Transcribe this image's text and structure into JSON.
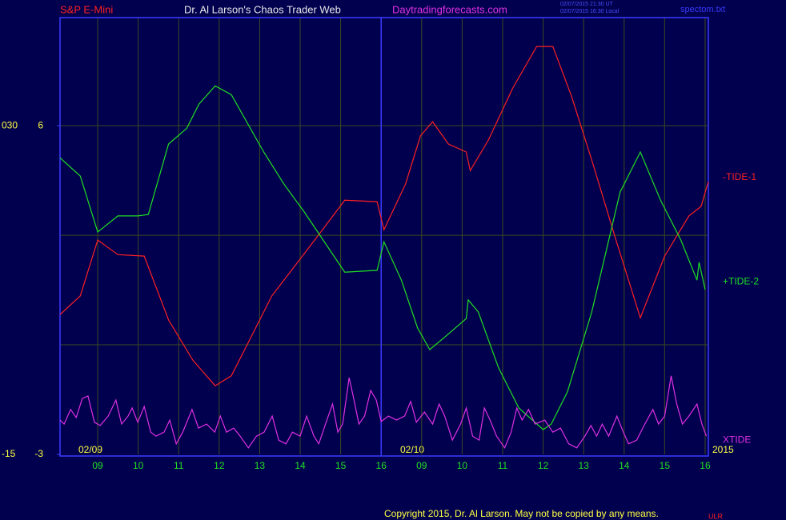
{
  "chart_data": {
    "type": "line",
    "header": {
      "instrument": "S&P E-Mini",
      "site": "Dr. Al Larson's Chaos Trader Web",
      "url": "Daytradingforecasts.com",
      "stamp_ut": "02/07/2015 21:30 UT",
      "stamp_local": "02/07/2015 16:30 Local",
      "file": "spectom.txt"
    },
    "footer": {
      "copyright": "Copyright 2015, Dr. Al Larson. May not be copied by any means.",
      "tag": "ULR"
    },
    "dates": [
      "02/09",
      "02/10"
    ],
    "year": "2015",
    "day_break": 8,
    "xlim": [
      0.07,
      16.08
    ],
    "xticks": [
      {
        "value": 1,
        "label": "09"
      },
      {
        "value": 2,
        "label": "10"
      },
      {
        "value": 3,
        "label": "11"
      },
      {
        "value": 4,
        "label": "12"
      },
      {
        "value": 5,
        "label": "13"
      },
      {
        "value": 6,
        "label": "14"
      },
      {
        "value": 7,
        "label": "15"
      },
      {
        "value": 8,
        "label": "16"
      },
      {
        "value": 9,
        "label": "09"
      },
      {
        "value": 10,
        "label": "10"
      },
      {
        "value": 11,
        "label": "11"
      },
      {
        "value": 12,
        "label": "12"
      },
      {
        "value": 13,
        "label": "13"
      },
      {
        "value": 14,
        "label": "14"
      },
      {
        "value": 15,
        "label": "15"
      },
      {
        "value": 16,
        "label": "16"
      }
    ],
    "ylim": [
      -3,
      8.96
    ],
    "yticks": [
      -3,
      6
    ],
    "y2lim": [
      -15,
      44.8
    ],
    "y2ticks": [
      -15,
      {
        "value": 30,
        "label": "030"
      }
    ],
    "hgrid": [
      0,
      3,
      6
    ],
    "grid": true,
    "series": [
      {
        "name": "-TIDE-1",
        "color": "#ff2020",
        "x": [
          0.07,
          0.57,
          1,
          1.5,
          2.15,
          2.75,
          3.35,
          3.9,
          4.3,
          4.7,
          5.3,
          5.9,
          6.4,
          7.1,
          7.9,
          8.07,
          8.6,
          8.97,
          9.27,
          9.66,
          10.1,
          10.2,
          10.65,
          11.25,
          11.84,
          12.24,
          12.7,
          13.2,
          13.8,
          14.4,
          15.0,
          15.6,
          15.9,
          16.08
        ],
        "values": [
          0.83,
          1.34,
          2.87,
          2.47,
          2.43,
          0.68,
          -0.42,
          -1.12,
          -0.85,
          0.02,
          1.34,
          2.21,
          2.93,
          3.96,
          3.92,
          3.15,
          4.4,
          5.72,
          6.11,
          5.5,
          5.28,
          4.77,
          5.61,
          7.03,
          8.17,
          8.17,
          6.81,
          5.06,
          2.87,
          0.74,
          2.43,
          3.53,
          3.79,
          4.47
        ]
      },
      {
        "name": "+TIDE-2",
        "color": "#20e020",
        "x": [
          0.07,
          0.57,
          1,
          1.5,
          2,
          2.25,
          2.75,
          3.2,
          3.5,
          3.9,
          4.3,
          5.1,
          5.6,
          6.1,
          6.5,
          7.1,
          7.9,
          8.07,
          8.5,
          8.9,
          9.2,
          9.6,
          10.1,
          10.15,
          10.4,
          10.9,
          11.4,
          12,
          12.2,
          12.6,
          13.2,
          13.9,
          14.4,
          14.9,
          15.4,
          15.8,
          15.85,
          16
        ],
        "values": [
          5.12,
          4.62,
          3.09,
          3.53,
          3.53,
          3.57,
          5.5,
          5.93,
          6.59,
          7.09,
          6.85,
          5.28,
          4.4,
          3.64,
          2.98,
          1.99,
          2.04,
          2.82,
          1.77,
          0.46,
          -0.13,
          0.24,
          0.72,
          1.23,
          0.9,
          -0.63,
          -1.73,
          -2.32,
          -2.17,
          -1.29,
          0.9,
          4.18,
          5.28,
          3.96,
          2.87,
          1.77,
          2.26,
          1.51
        ]
      },
      {
        "name": "XTIDE",
        "color": "#e030e0",
        "x": [
          0.07,
          0.17,
          0.33,
          0.47,
          0.62,
          0.76,
          0.92,
          1.06,
          1.26,
          1.45,
          1.59,
          1.75,
          1.85,
          1.99,
          2.15,
          2.31,
          2.44,
          2.64,
          2.78,
          2.94,
          3.1,
          3.33,
          3.49,
          3.69,
          3.89,
          4.03,
          4.18,
          4.36,
          4.52,
          4.72,
          4.92,
          5.11,
          5.31,
          5.47,
          5.65,
          5.81,
          6,
          6.16,
          6.34,
          6.46,
          6.66,
          6.8,
          6.93,
          7.05,
          7.21,
          7.33,
          7.45,
          7.59,
          7.74,
          7.88,
          8,
          8.18,
          8.38,
          8.58,
          8.73,
          8.87,
          9.07,
          9.27,
          9.43,
          9.57,
          9.76,
          9.96,
          10.1,
          10.26,
          10.42,
          10.55,
          10.69,
          10.85,
          11.05,
          11.21,
          11.35,
          11.48,
          11.64,
          11.8,
          12.04,
          12.24,
          12.43,
          12.63,
          12.83,
          13.03,
          13.18,
          13.32,
          13.46,
          13.62,
          13.82,
          13.98,
          14.11,
          14.31,
          14.51,
          14.71,
          14.85,
          15,
          15.16,
          15.3,
          15.44,
          15.6,
          15.8,
          15.92,
          16.03
        ],
        "values": [
          -2.06,
          -2.17,
          -1.77,
          -1.99,
          -1.47,
          -1.4,
          -2.12,
          -2.21,
          -1.95,
          -1.51,
          -2.17,
          -1.95,
          -1.73,
          -2.12,
          -1.69,
          -2.39,
          -2.5,
          -2.39,
          -2.06,
          -2.71,
          -2.39,
          -1.77,
          -2.28,
          -2.17,
          -2.39,
          -1.95,
          -2.39,
          -2.28,
          -2.5,
          -2.82,
          -2.5,
          -2.39,
          -1.95,
          -2.61,
          -2.71,
          -2.39,
          -2.5,
          -1.95,
          -2.5,
          -2.71,
          -2.06,
          -1.62,
          -2.39,
          -2.17,
          -0.9,
          -1.51,
          -2.17,
          -1.95,
          -1.25,
          -1.51,
          -2.1,
          -1.95,
          -2.06,
          -1.95,
          -1.55,
          -2.12,
          -1.84,
          -2.17,
          -1.62,
          -1.95,
          -2.61,
          -2.17,
          -1.73,
          -2.5,
          -2.61,
          -1.73,
          -2.06,
          -2.5,
          -2.82,
          -2.39,
          -1.73,
          -2.06,
          -1.77,
          -2.17,
          -2.06,
          -2.39,
          -2.28,
          -2.71,
          -2.82,
          -2.5,
          -2.21,
          -2.5,
          -2.17,
          -2.5,
          -1.95,
          -2.39,
          -2.71,
          -2.61,
          -2.17,
          -1.77,
          -2.17,
          -1.95,
          -0.85,
          -1.62,
          -2.17,
          -1.95,
          -1.62,
          -2.17,
          -2.5
        ]
      }
    ]
  }
}
